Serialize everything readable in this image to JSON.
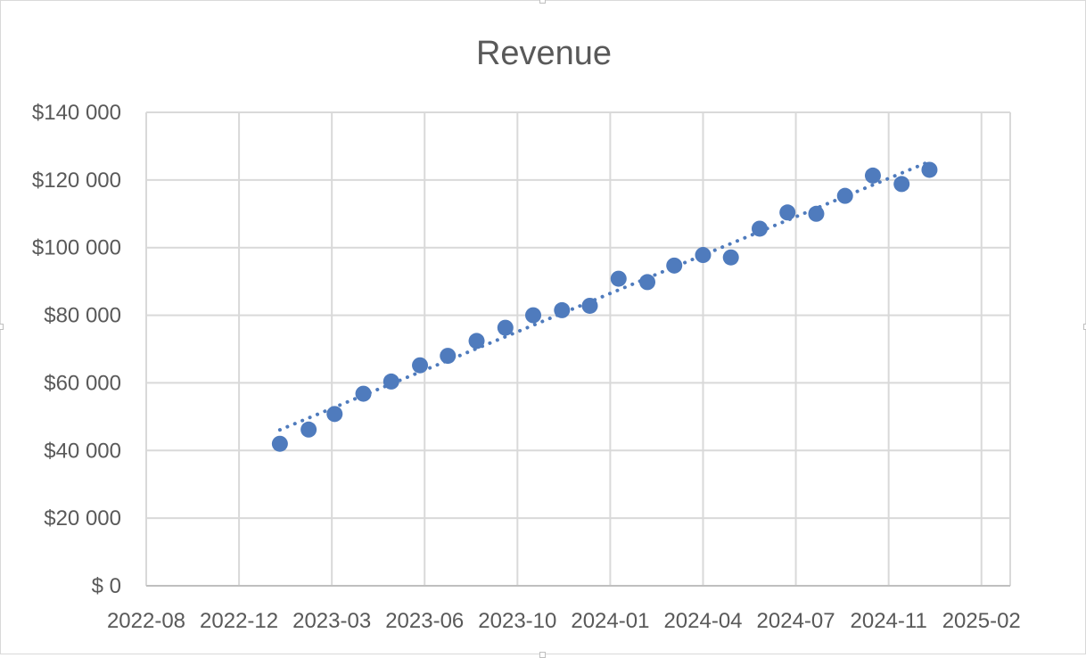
{
  "chart_data": {
    "type": "scatter",
    "title": "Revenue",
    "xlabel": "",
    "ylabel": "",
    "x_axis": {
      "kind": "date",
      "min": "2022-08-09",
      "max": "2025-02-25",
      "tick_labels": [
        "2022-08",
        "2022-12",
        "2023-03",
        "2023-06",
        "2023-10",
        "2024-01",
        "2024-04",
        "2024-07",
        "2024-11",
        "2025-02"
      ],
      "tick_dates": [
        "2022-08-09",
        "2022-11-17",
        "2023-02-25",
        "2023-06-05",
        "2023-09-13",
        "2023-12-22",
        "2024-03-31",
        "2024-07-09",
        "2024-10-17",
        "2025-01-25"
      ]
    },
    "y_axis": {
      "min": 0,
      "max": 140000,
      "major_unit": 20000,
      "tick_labels": [
        "$ 0",
        "$20 000",
        "$40 000",
        "$60 000",
        "$80 000",
        "$100 000",
        "$120 000",
        "$140 000"
      ]
    },
    "grid": true,
    "legend": "none",
    "marker_color": "#4f7bbd",
    "trendline": {
      "type": "linear",
      "style": "dotted",
      "color": "#4f7bbd"
    },
    "series": [
      {
        "x": [
          "2022-12-31",
          "2023-01-31",
          "2023-02-28",
          "2023-03-31",
          "2023-04-30",
          "2023-05-31",
          "2023-06-30",
          "2023-07-31",
          "2023-08-31",
          "2023-09-30",
          "2023-10-31",
          "2023-11-30",
          "2023-12-31",
          "2024-01-31",
          "2024-02-29",
          "2024-03-31",
          "2024-04-30",
          "2024-05-31",
          "2024-06-30",
          "2024-07-31",
          "2024-08-31",
          "2024-09-30",
          "2024-10-31",
          "2024-11-30"
        ],
        "y": [
          42000,
          46200,
          50800,
          56800,
          60400,
          65200,
          68000,
          72400,
          76300,
          80000,
          81500,
          82800,
          90800,
          89800,
          94700,
          97800,
          97100,
          105600,
          110400,
          110000,
          115300,
          121300,
          118800,
          123000
        ]
      }
    ]
  }
}
